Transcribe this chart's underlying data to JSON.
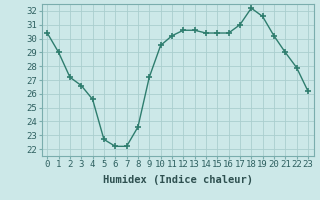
{
  "x": [
    0,
    1,
    2,
    3,
    4,
    5,
    6,
    7,
    8,
    9,
    10,
    11,
    12,
    13,
    14,
    15,
    16,
    17,
    18,
    19,
    20,
    21,
    22,
    23
  ],
  "y": [
    30.4,
    29.0,
    27.2,
    26.6,
    25.6,
    22.7,
    22.2,
    22.2,
    23.6,
    27.2,
    29.5,
    30.2,
    30.6,
    30.6,
    30.4,
    30.4,
    30.4,
    31.0,
    32.2,
    31.6,
    30.2,
    29.0,
    27.9,
    26.2
  ],
  "color": "#2e7d6e",
  "bg_color": "#cce8e8",
  "grid_color": "#aacece",
  "xlabel": "Humidex (Indice chaleur)",
  "ylim": [
    21.5,
    32.5
  ],
  "xlim": [
    -0.5,
    23.5
  ],
  "yticks": [
    22,
    23,
    24,
    25,
    26,
    27,
    28,
    29,
    30,
    31,
    32
  ],
  "xticks": [
    0,
    1,
    2,
    3,
    4,
    5,
    6,
    7,
    8,
    9,
    10,
    11,
    12,
    13,
    14,
    15,
    16,
    17,
    18,
    19,
    20,
    21,
    22,
    23
  ],
  "xtick_labels": [
    "0",
    "1",
    "2",
    "3",
    "4",
    "5",
    "6",
    "7",
    "8",
    "9",
    "10",
    "11",
    "12",
    "13",
    "14",
    "15",
    "16",
    "17",
    "18",
    "19",
    "20",
    "21",
    "22",
    "23"
  ],
  "marker": "+",
  "marker_size": 4,
  "linewidth": 1.0,
  "xlabel_fontsize": 7.5,
  "tick_fontsize": 6.5
}
